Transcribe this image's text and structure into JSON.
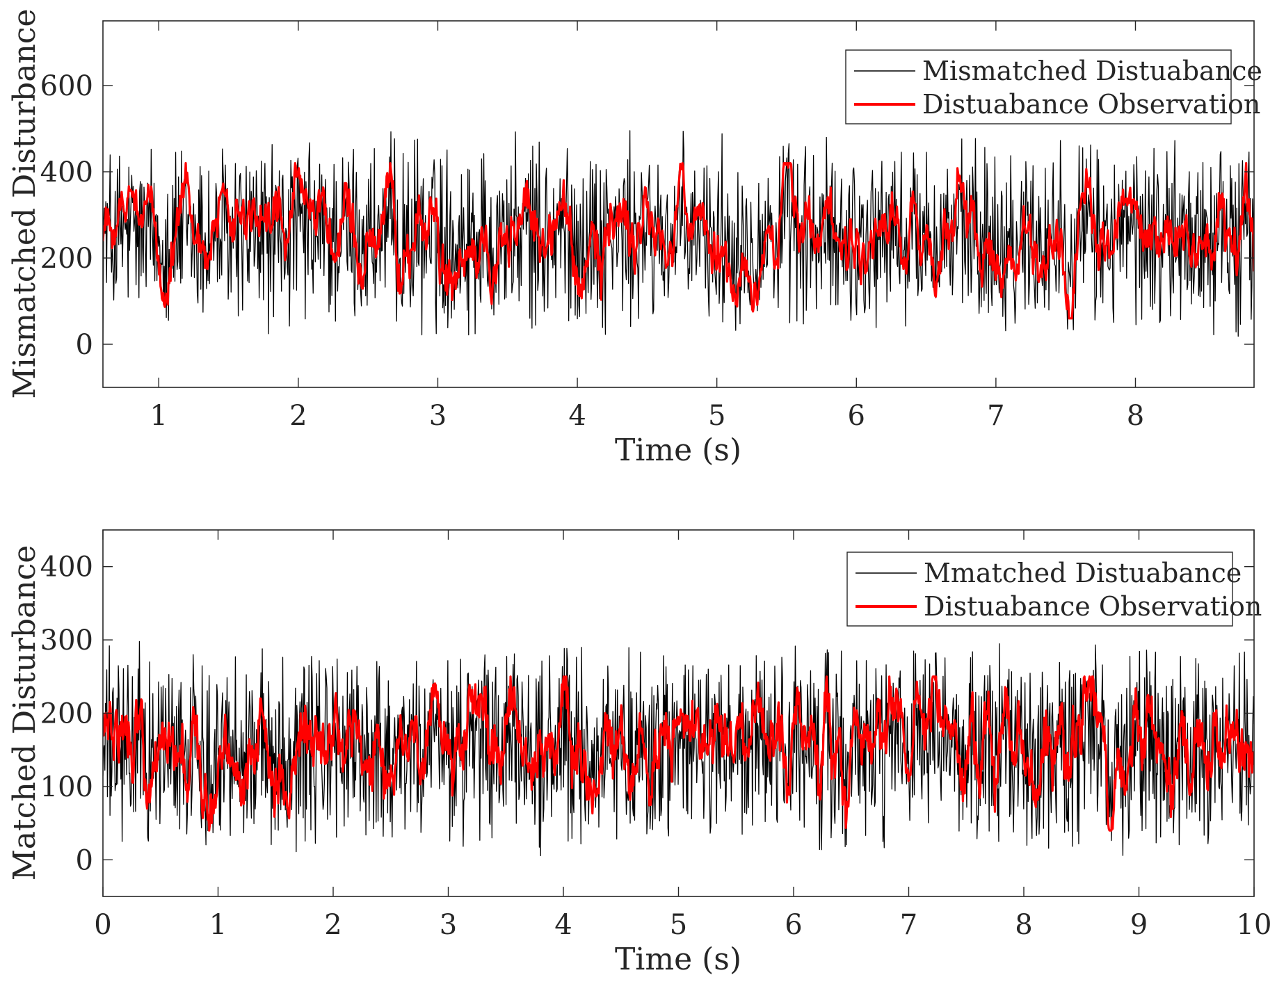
{
  "figure": {
    "background": "#ffffff"
  },
  "chart_data": [
    {
      "type": "line",
      "title": "",
      "xlabel": "Time (s)",
      "ylabel": "Mismatched Disturbance",
      "xlim": [
        0.6,
        8.85
      ],
      "ylim": [
        -100,
        750
      ],
      "xticks": [
        1,
        2,
        3,
        4,
        5,
        6,
        7,
        8
      ],
      "xtick_labels": [
        "1",
        "2",
        "3",
        "4",
        "5",
        "6",
        "7",
        "8"
      ],
      "yticks": [
        0,
        200,
        400,
        600
      ],
      "ytick_labels": [
        "0",
        "200",
        "400",
        "600"
      ],
      "grid": false,
      "legend_position": "top-right",
      "sampling": {
        "t_start": 0.6,
        "t_end": 8.85,
        "samples": 1600
      },
      "series": [
        {
          "name": "Mismatched Distuabance",
          "color": "#000000",
          "kind": "noise",
          "mean": 245,
          "min": 0,
          "max": 500,
          "line_width": 1.3
        },
        {
          "name": "Distuabance Observation",
          "color": "#ff0000",
          "kind": "filtered",
          "mean": 245,
          "min": 60,
          "max": 420,
          "line_width": 3.2
        }
      ]
    },
    {
      "type": "line",
      "title": "",
      "xlabel": "Time (s)",
      "ylabel": "Matched Disturbance",
      "xlim": [
        0,
        10
      ],
      "ylim": [
        -50,
        450
      ],
      "xticks": [
        0,
        1,
        2,
        3,
        4,
        5,
        6,
        7,
        8,
        9,
        10
      ],
      "xtick_labels": [
        "0",
        "1",
        "2",
        "3",
        "4",
        "5",
        "6",
        "7",
        "8",
        "9",
        "10"
      ],
      "yticks": [
        0,
        100,
        200,
        300,
        400
      ],
      "ytick_labels": [
        "0",
        "100",
        "200",
        "300",
        "400"
      ],
      "grid": false,
      "legend_position": "top-right",
      "sampling": {
        "t_start": 0,
        "t_end": 10,
        "samples": 1800
      },
      "series": [
        {
          "name": "Mmatched Distuabance",
          "color": "#000000",
          "kind": "noise",
          "mean": 150,
          "min": 0,
          "max": 300,
          "line_width": 1.3
        },
        {
          "name": "Distuabance Observation",
          "color": "#ff0000",
          "kind": "filtered",
          "mean": 150,
          "min": 40,
          "max": 250,
          "line_width": 3.2
        }
      ]
    }
  ]
}
